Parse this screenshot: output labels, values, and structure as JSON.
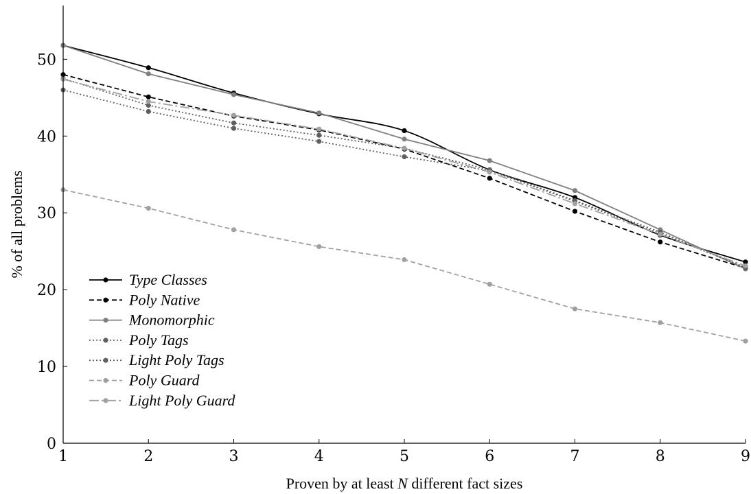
{
  "chart_data": {
    "type": "line",
    "xlabel_prefix": "Proven by at least ",
    "xlabel_var": "N",
    "xlabel_suffix": " different fact sizes",
    "ylabel": "% of all problems",
    "x": [
      1,
      2,
      3,
      4,
      5,
      6,
      7,
      8,
      9
    ],
    "xlim": [
      1,
      9
    ],
    "ylim": [
      0,
      57
    ],
    "yticks": [
      0,
      10,
      20,
      30,
      40,
      50
    ],
    "xticks": [
      1,
      2,
      3,
      4,
      5,
      6,
      7,
      8,
      9
    ],
    "grid": false,
    "legend_position": "lower-left",
    "series": [
      {
        "name": "Type Classes",
        "values": [
          51.8,
          48.9,
          45.6,
          42.9,
          40.7,
          35.6,
          32.0,
          27.1,
          23.6
        ],
        "color": "#000000",
        "dash": "solid",
        "smooth": true
      },
      {
        "name": "Poly Native",
        "values": [
          48.0,
          45.1,
          42.6,
          40.8,
          38.3,
          34.5,
          30.2,
          26.2,
          22.8
        ],
        "color": "#000000",
        "dash": "dashed",
        "smooth": false
      },
      {
        "name": "Monomorphic",
        "values": [
          51.8,
          48.1,
          45.4,
          43.0,
          39.6,
          36.8,
          32.9,
          27.8,
          22.7
        ],
        "color": "#808080",
        "dash": "solid",
        "smooth": false
      },
      {
        "name": "Poly Tags",
        "values": [
          46.0,
          43.2,
          41.0,
          39.3,
          37.3,
          35.5,
          31.5,
          27.3,
          22.9
        ],
        "color": "#606060",
        "dash": "dotted",
        "smooth": false
      },
      {
        "name": "Light Poly Tags",
        "values": [
          47.5,
          44.0,
          41.7,
          40.1,
          38.4,
          35.6,
          31.6,
          27.5,
          22.8
        ],
        "color": "#606060",
        "dash": "dotted",
        "smooth": false
      },
      {
        "name": "Poly Guard",
        "values": [
          33.0,
          30.6,
          27.8,
          25.6,
          23.9,
          20.7,
          17.5,
          15.7,
          13.3
        ],
        "color": "#a0a0a0",
        "dash": "dashed",
        "smooth": false
      },
      {
        "name": "Light Poly Guard",
        "values": [
          47.4,
          44.5,
          42.7,
          40.9,
          38.4,
          35.3,
          31.2,
          27.2,
          23.1
        ],
        "color": "#a0a0a0",
        "dash": "longdash",
        "smooth": false
      }
    ]
  }
}
